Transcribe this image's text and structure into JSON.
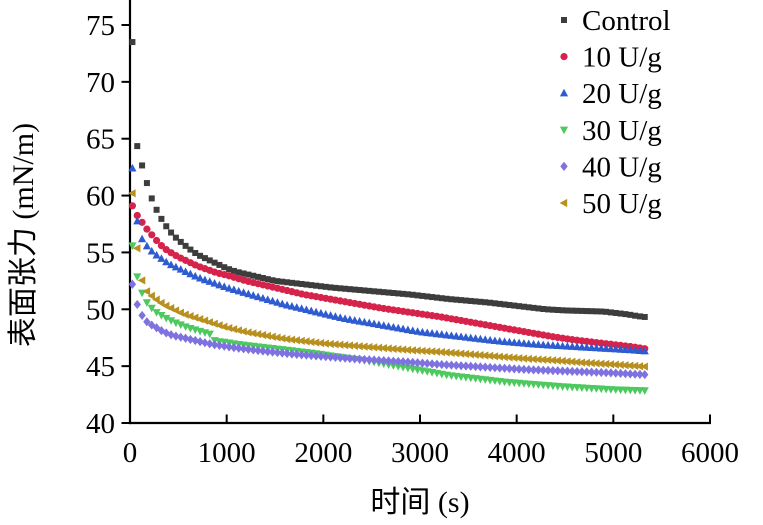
{
  "figure": {
    "background": "#ffffff",
    "axis_color": "#000000"
  },
  "chart_data": {
    "type": "scatter",
    "title": "",
    "xlabel": "时间 (s)",
    "ylabel": "表面张力 (mN/m)",
    "xlim": [
      0,
      6000
    ],
    "ylim": [
      40,
      77
    ],
    "x_ticks": [
      0,
      1000,
      2000,
      3000,
      4000,
      5000,
      6000
    ],
    "y_ticks": [
      40,
      45,
      50,
      55,
      60,
      65,
      70,
      75
    ],
    "grid": false,
    "legend_position": "top-right",
    "marker_interval_s": 50,
    "series": [
      {
        "name": "Control",
        "marker": "square",
        "color": "#3d3d3d",
        "points": [
          [
            25,
            73.5
          ],
          [
            50,
            65.3
          ],
          [
            100,
            63.4
          ],
          [
            150,
            61.9
          ],
          [
            200,
            60.3
          ],
          [
            250,
            59.2
          ],
          [
            300,
            58.3
          ],
          [
            350,
            57.6
          ],
          [
            400,
            57.0
          ],
          [
            450,
            56.5
          ],
          [
            500,
            56.1
          ],
          [
            600,
            55.4
          ],
          [
            700,
            54.8
          ],
          [
            800,
            54.4
          ],
          [
            900,
            54.0
          ],
          [
            1000,
            53.6
          ],
          [
            1100,
            53.3
          ],
          [
            1200,
            53.1
          ],
          [
            1300,
            52.9
          ],
          [
            1400,
            52.7
          ],
          [
            1500,
            52.5
          ],
          [
            1700,
            52.3
          ],
          [
            1900,
            52.1
          ],
          [
            2100,
            51.9
          ],
          [
            2300,
            51.75
          ],
          [
            2500,
            51.6
          ],
          [
            2700,
            51.45
          ],
          [
            2900,
            51.3
          ],
          [
            3100,
            51.1
          ],
          [
            3300,
            50.9
          ],
          [
            3500,
            50.75
          ],
          [
            3700,
            50.6
          ],
          [
            3900,
            50.4
          ],
          [
            4100,
            50.2
          ],
          [
            4300,
            50.0
          ],
          [
            4500,
            49.9
          ],
          [
            4700,
            49.85
          ],
          [
            4900,
            49.8
          ],
          [
            5000,
            49.7
          ],
          [
            5150,
            49.55
          ],
          [
            5250,
            49.4
          ],
          [
            5350,
            49.3
          ]
        ]
      },
      {
        "name": "10 U/g",
        "marker": "circle",
        "color": "#d6234b",
        "points": [
          [
            25,
            59.1
          ],
          [
            60,
            58.4
          ],
          [
            100,
            58.0
          ],
          [
            150,
            57.3
          ],
          [
            200,
            56.8
          ],
          [
            250,
            56.3
          ],
          [
            300,
            55.8
          ],
          [
            350,
            55.4
          ],
          [
            400,
            55.1
          ],
          [
            500,
            54.6
          ],
          [
            600,
            54.2
          ],
          [
            700,
            53.8
          ],
          [
            800,
            53.5
          ],
          [
            900,
            53.2
          ],
          [
            1000,
            53.0
          ],
          [
            1200,
            52.5
          ],
          [
            1400,
            52.1
          ],
          [
            1600,
            51.7
          ],
          [
            1800,
            51.3
          ],
          [
            2000,
            51.0
          ],
          [
            2200,
            50.7
          ],
          [
            2400,
            50.4
          ],
          [
            2600,
            50.1
          ],
          [
            2800,
            49.85
          ],
          [
            3000,
            49.6
          ],
          [
            3200,
            49.35
          ],
          [
            3400,
            49.05
          ],
          [
            3600,
            48.75
          ],
          [
            3800,
            48.45
          ],
          [
            4000,
            48.15
          ],
          [
            4200,
            47.85
          ],
          [
            4400,
            47.55
          ],
          [
            4600,
            47.3
          ],
          [
            4800,
            47.1
          ],
          [
            5000,
            46.9
          ],
          [
            5200,
            46.7
          ],
          [
            5350,
            46.5
          ]
        ]
      },
      {
        "name": "20 U/g",
        "marker": "triangle-up",
        "color": "#2e5cd0",
        "points": [
          [
            25,
            62.4
          ],
          [
            50,
            59.5
          ],
          [
            90,
            56.7
          ],
          [
            150,
            55.8
          ],
          [
            200,
            55.3
          ],
          [
            250,
            54.9
          ],
          [
            300,
            54.6
          ],
          [
            400,
            54.0
          ],
          [
            500,
            53.6
          ],
          [
            600,
            53.2
          ],
          [
            700,
            52.8
          ],
          [
            800,
            52.5
          ],
          [
            900,
            52.2
          ],
          [
            1000,
            51.9
          ],
          [
            1200,
            51.4
          ],
          [
            1400,
            50.9
          ],
          [
            1600,
            50.4
          ],
          [
            1800,
            50.0
          ],
          [
            2000,
            49.6
          ],
          [
            2200,
            49.2
          ],
          [
            2400,
            48.9
          ],
          [
            2600,
            48.6
          ],
          [
            2800,
            48.3
          ],
          [
            3000,
            48.0
          ],
          [
            3200,
            47.8
          ],
          [
            3400,
            47.6
          ],
          [
            3600,
            47.4
          ],
          [
            3800,
            47.2
          ],
          [
            4000,
            47.05
          ],
          [
            4200,
            46.9
          ],
          [
            4400,
            46.8
          ],
          [
            4600,
            46.7
          ],
          [
            4800,
            46.6
          ],
          [
            5000,
            46.5
          ],
          [
            5200,
            46.4
          ],
          [
            5350,
            46.3
          ]
        ]
      },
      {
        "name": "30 U/g",
        "marker": "triangle-down",
        "color": "#4dc95f",
        "points": [
          [
            25,
            55.6
          ],
          [
            60,
            53.4
          ],
          [
            100,
            52.0
          ],
          [
            150,
            50.9
          ],
          [
            200,
            50.3
          ],
          [
            280,
            49.7
          ],
          [
            380,
            49.2
          ],
          [
            480,
            48.8
          ],
          [
            600,
            48.4
          ],
          [
            720,
            48.1
          ],
          [
            840,
            47.8
          ],
          [
            880,
            47.2
          ],
          [
            960,
            47.15
          ],
          [
            1100,
            46.95
          ],
          [
            1300,
            46.75
          ],
          [
            1500,
            46.55
          ],
          [
            1700,
            46.35
          ],
          [
            1900,
            46.15
          ],
          [
            2100,
            45.9
          ],
          [
            2300,
            45.65
          ],
          [
            2500,
            45.4
          ],
          [
            2700,
            45.1
          ],
          [
            2900,
            44.8
          ],
          [
            3100,
            44.5
          ],
          [
            3300,
            44.2
          ],
          [
            3600,
            43.9
          ],
          [
            3900,
            43.6
          ],
          [
            4200,
            43.4
          ],
          [
            4500,
            43.2
          ],
          [
            4800,
            43.05
          ],
          [
            5000,
            42.95
          ],
          [
            5350,
            42.85
          ]
        ]
      },
      {
        "name": "40 U/g",
        "marker": "diamond",
        "color": "#7e72e0",
        "points": [
          [
            25,
            52.2
          ],
          [
            45,
            51.4
          ],
          [
            85,
            50.1
          ],
          [
            135,
            49.3
          ],
          [
            185,
            48.8
          ],
          [
            270,
            48.4
          ],
          [
            350,
            48.0
          ],
          [
            445,
            47.7
          ],
          [
            550,
            47.5
          ],
          [
            650,
            47.3
          ],
          [
            755,
            47.1
          ],
          [
            860,
            46.9
          ],
          [
            1100,
            46.6
          ],
          [
            1400,
            46.3
          ],
          [
            1700,
            46.05
          ],
          [
            2000,
            45.85
          ],
          [
            2300,
            45.65
          ],
          [
            2600,
            45.5
          ],
          [
            2900,
            45.35
          ],
          [
            3200,
            45.15
          ],
          [
            3500,
            45.0
          ],
          [
            3800,
            44.85
          ],
          [
            4100,
            44.7
          ],
          [
            4400,
            44.6
          ],
          [
            4700,
            44.5
          ],
          [
            5000,
            44.4
          ],
          [
            5200,
            44.3
          ],
          [
            5350,
            44.25
          ]
        ]
      },
      {
        "name": "50 U/g",
        "marker": "triangle-left",
        "color": "#b7901f",
        "points": [
          [
            25,
            60.2
          ],
          [
            50,
            57.3
          ],
          [
            90,
            54.2
          ],
          [
            130,
            52.3
          ],
          [
            180,
            51.5
          ],
          [
            250,
            51.0
          ],
          [
            350,
            50.4
          ],
          [
            450,
            50.0
          ],
          [
            550,
            49.6
          ],
          [
            700,
            49.2
          ],
          [
            850,
            48.8
          ],
          [
            1000,
            48.4
          ],
          [
            1200,
            48.0
          ],
          [
            1400,
            47.7
          ],
          [
            1600,
            47.4
          ],
          [
            1800,
            47.2
          ],
          [
            2000,
            47.0
          ],
          [
            2300,
            46.8
          ],
          [
            2600,
            46.6
          ],
          [
            2900,
            46.4
          ],
          [
            3200,
            46.25
          ],
          [
            3500,
            46.05
          ],
          [
            3800,
            45.85
          ],
          [
            4100,
            45.65
          ],
          [
            4400,
            45.5
          ],
          [
            4700,
            45.3
          ],
          [
            5000,
            45.15
          ],
          [
            5350,
            44.95
          ]
        ]
      }
    ]
  }
}
